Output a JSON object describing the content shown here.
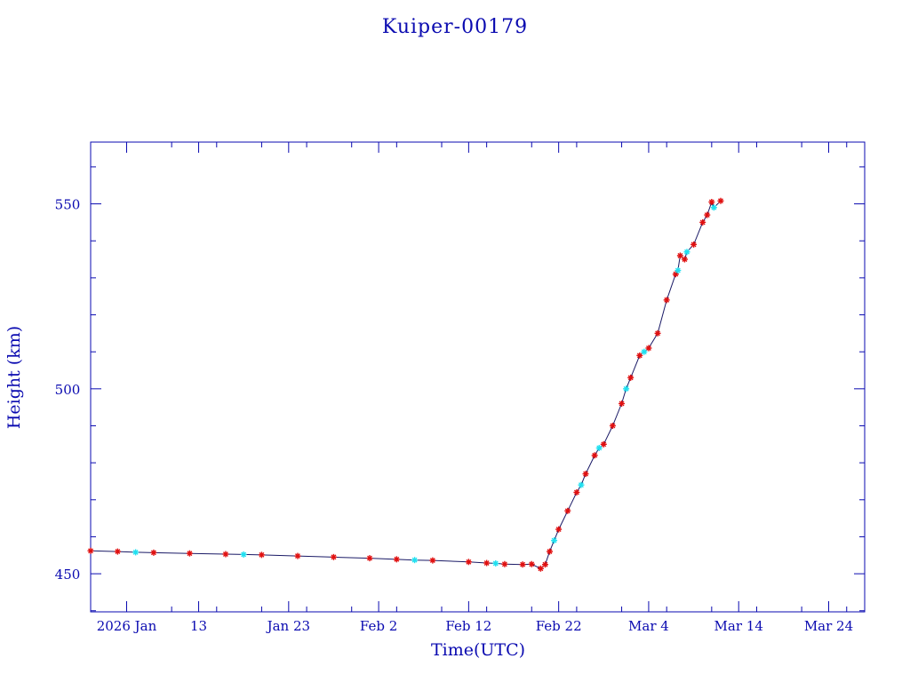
{
  "chart_data": {
    "type": "scatter",
    "title": "Kuiper-00179",
    "xlabel": "Time(UTC)",
    "ylabel": "Height (km)",
    "x_axis": {
      "type": "date",
      "min": "2026-01-01",
      "max": "2026-03-28",
      "ticks": [
        {
          "date": "2026-01-05",
          "label": "2026 Jan"
        },
        {
          "date": "2026-01-13",
          "label": "13"
        },
        {
          "date": "2026-01-23",
          "label": "Jan 23"
        },
        {
          "date": "2026-02-02",
          "label": "Feb  2"
        },
        {
          "date": "2026-02-12",
          "label": "Feb 12"
        },
        {
          "date": "2026-02-22",
          "label": "Feb 22"
        },
        {
          "date": "2026-03-04",
          "label": "Mar  4"
        },
        {
          "date": "2026-03-14",
          "label": "Mar 14"
        },
        {
          "date": "2026-03-24",
          "label": "Mar 24"
        }
      ],
      "minor_tick_step_days": 5
    },
    "y_axis": {
      "min": 439.7,
      "max": 566.7,
      "ticks": [
        450,
        500,
        550
      ],
      "minor_tick_step": 10
    },
    "grid": false,
    "legend": "none",
    "colors": {
      "frame": "#0a0ab0",
      "line": "#1a1a66",
      "marker_primary": "#e01010",
      "marker_secondary": "#20e0f0"
    },
    "series": [
      {
        "color": "#e01010",
        "points": [
          [
            "2026-01-01",
            456.2
          ],
          [
            "2026-01-04",
            456.0
          ],
          [
            "2026-01-08",
            455.7
          ],
          [
            "2026-01-12",
            455.5
          ],
          [
            "2026-01-16",
            455.3
          ],
          [
            "2026-01-20",
            455.1
          ],
          [
            "2026-01-24",
            454.8
          ],
          [
            "2026-01-28",
            454.5
          ],
          [
            "2026-02-01",
            454.2
          ],
          [
            "2026-02-04",
            453.9
          ],
          [
            "2026-02-08",
            453.6
          ],
          [
            "2026-02-12",
            453.2
          ],
          [
            "2026-02-14",
            452.9
          ],
          [
            "2026-02-16",
            452.6
          ],
          [
            "2026-02-18",
            452.5
          ],
          [
            "2026-02-19",
            452.6
          ],
          [
            "2026-02-20",
            451.4
          ],
          [
            "2026-02-20T12:00",
            452.5
          ],
          [
            "2026-02-21",
            456.0
          ],
          [
            "2026-02-22",
            462.0
          ],
          [
            "2026-02-23",
            467.0
          ],
          [
            "2026-02-24",
            472.0
          ],
          [
            "2026-02-25",
            477.0
          ],
          [
            "2026-02-26",
            482.0
          ],
          [
            "2026-02-27",
            485.0
          ],
          [
            "2026-02-28",
            490.0
          ],
          [
            "2026-03-01",
            496.0
          ],
          [
            "2026-03-02",
            503.0
          ],
          [
            "2026-03-03",
            509.0
          ],
          [
            "2026-03-04",
            511.0
          ],
          [
            "2026-03-05",
            515.0
          ],
          [
            "2026-03-06",
            524.0
          ],
          [
            "2026-03-07",
            531.0
          ],
          [
            "2026-03-07T12:00",
            536.0
          ],
          [
            "2026-03-08",
            535.0
          ],
          [
            "2026-03-09",
            539.0
          ],
          [
            "2026-03-10",
            545.0
          ],
          [
            "2026-03-10T12:00",
            547.0
          ],
          [
            "2026-03-11",
            550.5
          ],
          [
            "2026-03-12",
            550.8
          ]
        ]
      },
      {
        "color": "#20e0f0",
        "points": [
          [
            "2026-01-06",
            455.8
          ],
          [
            "2026-01-18",
            455.2
          ],
          [
            "2026-02-06",
            453.7
          ],
          [
            "2026-02-15",
            452.8
          ],
          [
            "2026-02-21T12:00",
            459.0
          ],
          [
            "2026-02-24T12:00",
            474.0
          ],
          [
            "2026-02-26T12:00",
            484.0
          ],
          [
            "2026-03-01T12:00",
            500.0
          ],
          [
            "2026-03-03T12:00",
            510.0
          ],
          [
            "2026-03-07T06:00",
            532.0
          ],
          [
            "2026-03-08T06:00",
            537.0
          ],
          [
            "2026-03-11T06:00",
            549.0
          ]
        ]
      }
    ]
  }
}
